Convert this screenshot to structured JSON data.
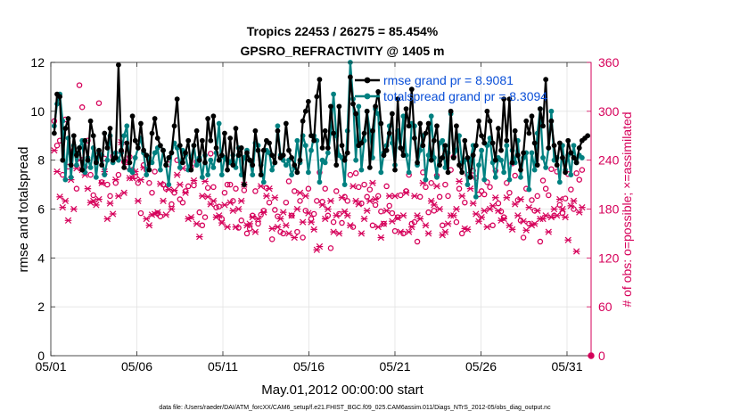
{
  "chart_data": {
    "type": "line",
    "title": "Tropics 22453 / 26275 = 85.454%",
    "subtitle": "GPSRO_REFRACTIVITY @ 1405 m",
    "xlabel": "May.01,2012 00:00:00 start",
    "ylabel": "rmse and totalspread",
    "ylabel_right": "# of obs: o=possible; ×=assimilated",
    "footnote": "data file: /Users/raeder/DAI/ATM_forcXX/CAM6_setup/f.e21.FHIST_BGC.f09_025.CAM6assim.011/Diags_NTrS_2012-05/obs_diag_output.nc",
    "xlim": [
      0,
      31.4
    ],
    "ylim": [
      0,
      12
    ],
    "ylim_right": [
      0,
      360
    ],
    "x_ticks": [
      0,
      5,
      10,
      15,
      20,
      25,
      30
    ],
    "x_tick_labels": [
      "05/01",
      "05/06",
      "05/11",
      "05/16",
      "05/21",
      "05/26",
      "05/31"
    ],
    "y_ticks": [
      0,
      2,
      4,
      6,
      8,
      10,
      12
    ],
    "y_ticks_right": [
      0,
      60,
      120,
      180,
      240,
      300,
      360
    ],
    "grid": true,
    "legend_position": "top-right",
    "colors": {
      "rmse": "#000000",
      "totalspread": "#008080",
      "obs": "#d6005a",
      "legend_text": "#0a4fd8",
      "grid": "#e3e3e3"
    },
    "series": [
      {
        "name": "rmse grand pr = 8.9081",
        "values": [
          9.1,
          10.7,
          10.6,
          8.0,
          9.3,
          9.7,
          7.8,
          9.0,
          8.2,
          8.5,
          7.6,
          8.8,
          8.0,
          9.6,
          9.0,
          7.9,
          8.4,
          7.8,
          9.1,
          8.5,
          9.3,
          8.0,
          8.1,
          11.9,
          8.4,
          7.7,
          8.7,
          7.9,
          9.8,
          8.8,
          8.5,
          9.5,
          8.4,
          8.2,
          7.6,
          9.1,
          9.7,
          8.9,
          8.6,
          8.4,
          7.8,
          8.1,
          8.3,
          9.4,
          10.5,
          8.6,
          7.9,
          8.3,
          8.8,
          7.6,
          8.6,
          9.2,
          8.0,
          8.8,
          7.9,
          9.7,
          8.8,
          9.8,
          8.5,
          8.0,
          8.2,
          9.1,
          7.6,
          8.9,
          7.8,
          9.3,
          8.2,
          8.5,
          7.0,
          8.3,
          8.0,
          7.8,
          9.2,
          8.4,
          7.4,
          8.4,
          8.8,
          8.7,
          8.2,
          7.9,
          9.2,
          8.1,
          8.2,
          9.5,
          8.4,
          8.1,
          7.8,
          7.5,
          8.0,
          9.6,
          10.0,
          10.4,
          9.0,
          8.8,
          10.6,
          11.3,
          8.5,
          9.2,
          8.5,
          10.2,
          9.1,
          7.8,
          10.2,
          8.6,
          8.0,
          8.3,
          11.4,
          10.3,
          9.9,
          8.6,
          8.7,
          9.1,
          10.0,
          7.7,
          9.2,
          10.2,
          10.8,
          9.5,
          8.2,
          8.4,
          9.1,
          9.9,
          7.6,
          10.5,
          8.5,
          8.2,
          10.1,
          9.4,
          10.9,
          8.9,
          7.9,
          9.5,
          8.6,
          9.1,
          9.5,
          8.0,
          8.8,
          9.4,
          7.8,
          8.1,
          8.6,
          7.5,
          10.0,
          8.1,
          9.4,
          7.8,
          7.5,
          8.8,
          8.1,
          7.3,
          8.2,
          8.6,
          9.6,
          9.0,
          8.7,
          10.0,
          9.6,
          8.7,
          8.0,
          9.3,
          8.4,
          10.5,
          8.8,
          10.5,
          7.9,
          9.2,
          8.2,
          7.6,
          8.3,
          9.6,
          9.1,
          9.8,
          8.7,
          7.8,
          10.1,
          9.4,
          11.3,
          8.5,
          9.6,
          8.6,
          7.8,
          8.7,
          8.1,
          7.5,
          8.8,
          8.3,
          8.1,
          7.9,
          8.5,
          8.8,
          8.9,
          9.0
        ]
      },
      {
        "name": "totalspread grand pr = 8.3094",
        "values": [
          9.4,
          10.3,
          10.7,
          9.6,
          7.2,
          8.9,
          7.3,
          8.6,
          7.8,
          8.5,
          8.8,
          7.5,
          8.1,
          7.7,
          8.5,
          7.3,
          8.3,
          8.2,
          7.4,
          8.0,
          9.0,
          7.9,
          8.3,
          8.0,
          8.3,
          9.0,
          9.4,
          7.6,
          7.5,
          8.1,
          8.5,
          8.9,
          8.3,
          7.4,
          8.1,
          7.9,
          8.3,
          8.5,
          7.6,
          8.4,
          7.8,
          7.0,
          8.3,
          8.7,
          8.5,
          7.7,
          8.4,
          8.2,
          7.6,
          8.1,
          8.6,
          7.8,
          8.1,
          7.3,
          8.2,
          7.4,
          8.0,
          7.7,
          8.3,
          9.5,
          7.4,
          8.1,
          8.0,
          7.9,
          8.2,
          7.7,
          8.5,
          7.4,
          8.1,
          8.4,
          8.0,
          7.4,
          8.7,
          8.6,
          7.8,
          7.1,
          8.4,
          8.3,
          7.6,
          7.9,
          9.4,
          8.2,
          8.0,
          7.8,
          8.0,
          7.4,
          7.7,
          8.8,
          7.9,
          9.0,
          8.6,
          7.5,
          8.4,
          9.0,
          8.8,
          7.1,
          8.0,
          7.9,
          8.3,
          9.1,
          10.7,
          9.0,
          8.2,
          8.1,
          7.0,
          9.2,
          12.0,
          10.5,
          8.0,
          10.2,
          7.6,
          8.8,
          10.0,
          9.2,
          8.1,
          10.1,
          9.9,
          7.5,
          8.3,
          8.6,
          9.4,
          8.7,
          7.8,
          9.2,
          8.5,
          9.8,
          8.2,
          7.5,
          9.5,
          9.4,
          7.8,
          8.4,
          9.0,
          7.2,
          8.2,
          9.8,
          8.1,
          7.3,
          8.7,
          8.8,
          7.7,
          8.3,
          9.9,
          8.1,
          8.4,
          9.0,
          7.9,
          8.0,
          7.0,
          8.0,
          8.6,
          6.5,
          7.8,
          8.4,
          7.2,
          8.6,
          8.9,
          7.9,
          7.3,
          8.1,
          8.0,
          7.5,
          8.6,
          7.2,
          8.4,
          7.9,
          8.8,
          7.3,
          8.1,
          8.3,
          6.8,
          8.3,
          7.6,
          9.1,
          10.1,
          8.1,
          7.7,
          8.5,
          10.0,
          8.0,
          8.1,
          7.1,
          8.6,
          7.6,
          8.2,
          7.4,
          8.6,
          7.9,
          8.2,
          8.1
        ]
      },
      {
        "name": "possible",
        "axis": "right",
        "marker": "o",
        "values": [
          288,
          258,
          264,
          222,
          290,
          232,
          248,
          252,
          205,
          332,
          305,
          232,
          264,
          222,
          197,
          242,
          310,
          213,
          242,
          210,
          196,
          245,
          212,
          222,
          250,
          238,
          232,
          244,
          228,
          220,
          212,
          175,
          234,
          228,
          212,
          200,
          226,
          175,
          171,
          210,
          205,
          235,
          186,
          200,
          240,
          192,
          188,
          202,
          208,
          232,
          209,
          238,
          176,
          160,
          170,
          206,
          248,
          207,
          182,
          183,
          168,
          200,
          210,
          210,
          190,
          205,
          157,
          166,
          203,
          150,
          156,
          172,
          202,
          162,
          173,
          178,
          206,
          188,
          143,
          179,
          171,
          152,
          150,
          188,
          214,
          172,
          202,
          152,
          190,
          145,
          178,
          205,
          168,
          174,
          190,
          225,
          189,
          205,
          172,
          132,
          164,
          202,
          174,
          163,
          195,
          190,
          222,
          158,
          224,
          207,
          187,
          210,
          195,
          204,
          160,
          185,
          196,
          177,
          162,
          208,
          184,
          175,
          153,
          170,
          197,
          150,
          202,
          222,
          162,
          164,
          140,
          195,
          225,
          207,
          176,
          212,
          178,
          221,
          195,
          160,
          210,
          196,
          228,
          244,
          164,
          205,
          150,
          188,
          222,
          220,
          227,
          218,
          198,
          202,
          198,
          213,
          207,
          160,
          227,
          187,
          177,
          170,
          212,
          200,
          236,
          221,
          191,
          166,
          145,
          205,
          162,
          191,
          178,
          196,
          140,
          215,
          205,
          197,
          229,
          172,
          226,
          185,
          175,
          193,
          223,
          204,
          180,
          224,
          216,
          228
        ]
      },
      {
        "name": "assimilated",
        "axis": "right",
        "marker": "x",
        "values": [
          252,
          226,
          195,
          182,
          190,
          166,
          216,
          180,
          230,
          240,
          228,
          222,
          205,
          188,
          190,
          185,
          192,
          212,
          226,
          168,
          187,
          174,
          216,
          196,
          262,
          200,
          240,
          218,
          218,
          226,
          190,
          216,
          231,
          168,
          160,
          173,
          174,
          176,
          211,
          190,
          173,
          204,
          180,
          203,
          222,
          210,
          230,
          200,
          168,
          170,
          215,
          162,
          146,
          196,
          214,
          195,
          186,
          190,
          170,
          172,
          163,
          185,
          158,
          188,
          178,
          158,
          180,
          190,
          210,
          160,
          162,
          170,
          152,
          168,
          208,
          176,
          196,
          205,
          156,
          194,
          158,
          168,
          176,
          160,
          150,
          172,
          145,
          180,
          200,
          164,
          196,
          175,
          164,
          155,
          130,
          134,
          185,
          168,
          180,
          190,
          152,
          172,
          150,
          194,
          177,
          172,
          160,
          208,
          190,
          186,
          150,
          168,
          178,
          190,
          212,
          192,
          158,
          145,
          162,
          178,
          196,
          165,
          196,
          169,
          152,
          172,
          200,
          152,
          158,
          196,
          172,
          168,
          212,
          160,
          150,
          190,
          185,
          208,
          180,
          148,
          152,
          162,
          172,
          172,
          180,
          214,
          196,
          156,
          155,
          205,
          187,
          174,
          165,
          170,
          178,
          158,
          180,
          184,
          194,
          178,
          166,
          168,
          194,
          160,
          155,
          186,
          172,
          192,
          165,
          154,
          182,
          160,
          162,
          178,
          168,
          168,
          172,
          152,
          170,
          180,
          172,
          192,
          180,
          170,
          142,
          184,
          190,
          128,
          176,
          182
        ]
      }
    ]
  }
}
